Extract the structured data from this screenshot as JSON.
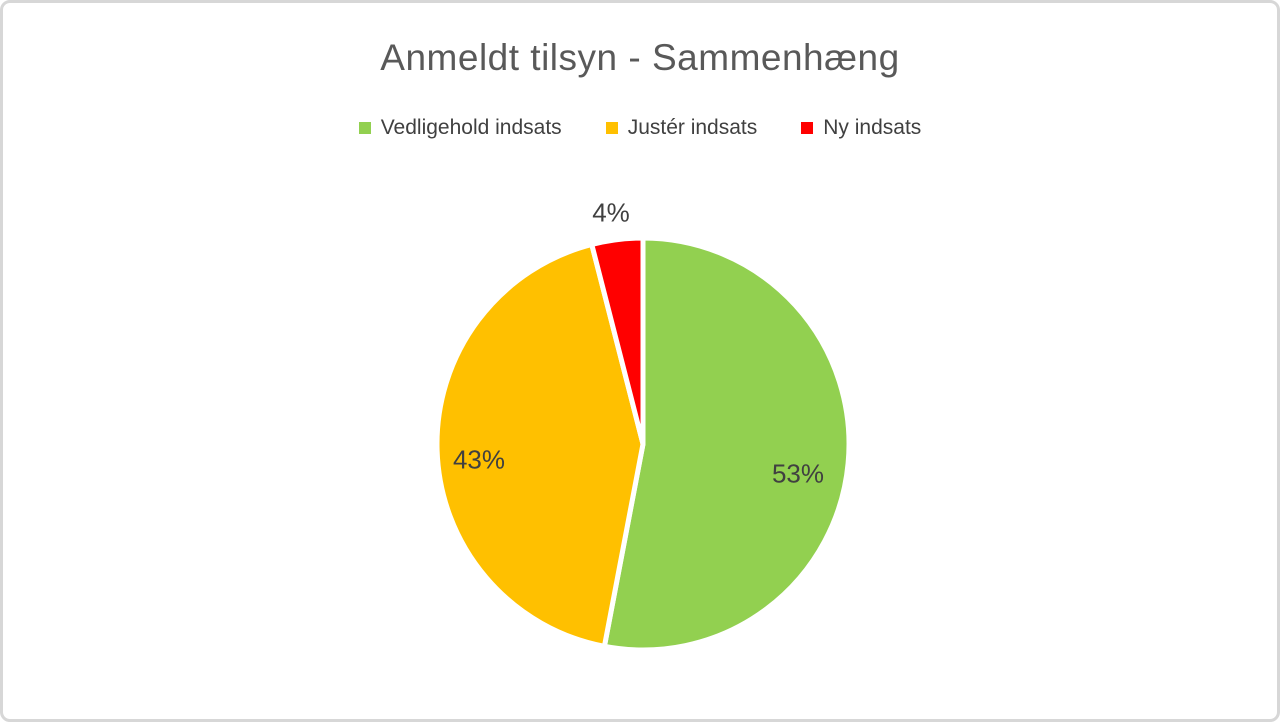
{
  "chart_data": {
    "type": "pie",
    "title": "Anmeldt tilsyn - Sammenhæng",
    "categories": [
      "Vedligehold indsats",
      "Justér indsats",
      "Ny indsats"
    ],
    "values": [
      53,
      43,
      4
    ],
    "unit": "%",
    "data_labels": [
      "53%",
      "43%",
      "4%"
    ],
    "colors": [
      "#92D050",
      "#FFC000",
      "#FF0000"
    ],
    "legend_position": "top",
    "start_angle_deg": 0,
    "direction": "clockwise",
    "label_color": "#404040",
    "title_color": "#595959"
  }
}
